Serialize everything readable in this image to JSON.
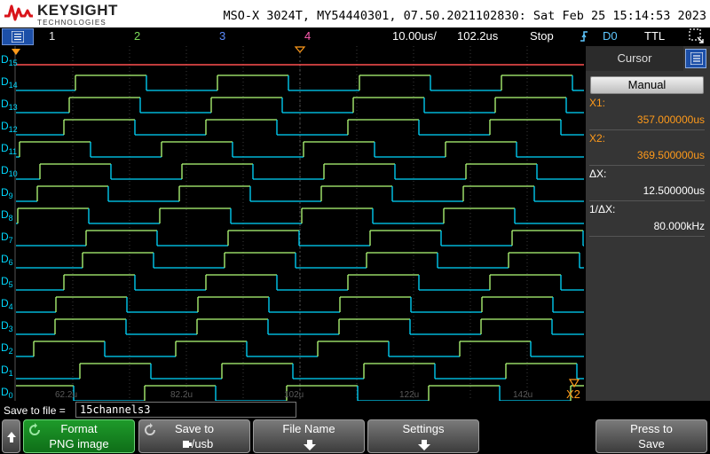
{
  "brand": {
    "name": "KEYSIGHT",
    "sub": "TECHNOLOGIES"
  },
  "instrument_info": "MSO-X 3024T, MY54440301, 07.50.2021102830: Sat Feb 25 15:14:53 2023",
  "status": {
    "channels": [
      {
        "label": "1",
        "color": "#e8e8e8"
      },
      {
        "label": "2",
        "color": "#7cdc5a"
      },
      {
        "label": "3",
        "color": "#5c8cff"
      },
      {
        "label": "4",
        "color": "#ff5cb0"
      }
    ],
    "timebase": "10.00us/",
    "delay": "102.2us",
    "run_state": "Stop",
    "trigger_source": "D0",
    "trigger_type": "TTL"
  },
  "channel_labels": [
    "D15",
    "D14",
    "D13",
    "D12",
    "D11",
    "D10",
    "D9",
    "D8",
    "D7",
    "D6",
    "D5",
    "D4",
    "D3",
    "D2",
    "D1",
    "D0"
  ],
  "time_ticks": [
    "62.2u",
    "82.2u",
    "102u",
    "122u",
    "142u"
  ],
  "cursor_x2_marker": "X2",
  "panel": {
    "title": "Cursor",
    "mode": "Manual",
    "x1_label": "X1:",
    "x1_value": "357.000000us",
    "x2_label": "X2:",
    "x2_value": "369.500000us",
    "dx_label": "ΔX:",
    "dx_value": "12.500000us",
    "inv_dx_label": "1/ΔX:",
    "inv_dx_value": "80.000kHz"
  },
  "save": {
    "label": "Save to file =",
    "filename": "15channels3"
  },
  "softkeys": {
    "format": {
      "line1": "Format",
      "line2": "PNG image"
    },
    "save_to": {
      "line1": "Save to",
      "line2": "/usb"
    },
    "file_name": {
      "line1": "File Name"
    },
    "settings": {
      "line1": "Settings"
    },
    "press": {
      "line1": "Press to",
      "line2": "Save"
    }
  },
  "colors": {
    "high": "#b4ff78",
    "low": "#00d8ff",
    "d15": "#ff5050",
    "cursor": "#ff9a1a"
  }
}
